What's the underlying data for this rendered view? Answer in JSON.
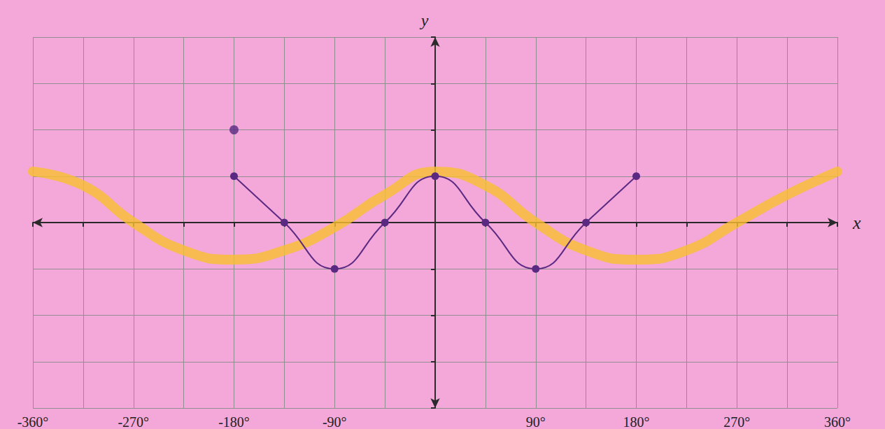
{
  "chart_data": {
    "type": "line",
    "xlabel": "x",
    "ylabel": "y",
    "xlim": [
      -360,
      360
    ],
    "ylim": [
      -4,
      4
    ],
    "xticks": [
      {
        "value": -360,
        "label": "-360°"
      },
      {
        "value": -315,
        "label": null
      },
      {
        "value": -270,
        "label": "-270°"
      },
      {
        "value": -225,
        "label": null
      },
      {
        "value": -180,
        "label": "-180°"
      },
      {
        "value": -135,
        "label": null
      },
      {
        "value": -90,
        "label": "-90°"
      },
      {
        "value": -45,
        "label": null
      },
      {
        "value": 0,
        "label": null
      },
      {
        "value": 45,
        "label": null
      },
      {
        "value": 90,
        "label": "90°"
      },
      {
        "value": 135,
        "label": null
      },
      {
        "value": 180,
        "label": "180°"
      },
      {
        "value": 225,
        "label": null
      },
      {
        "value": 270,
        "label": "270°"
      },
      {
        "value": 315,
        "label": null
      },
      {
        "value": 360,
        "label": "360°"
      }
    ],
    "yticks": [
      -4,
      -3,
      -2,
      -1,
      0,
      1,
      2,
      3,
      4
    ],
    "grid": true,
    "tick_labels": "x",
    "series": [
      {
        "type": "line",
        "color": "#f7c02e",
        "line_style": "solid",
        "x": [
          -360,
          -315,
          -270,
          -225,
          -180,
          -135,
          -90,
          -45,
          0,
          45,
          90,
          135,
          180,
          225,
          270,
          315,
          360
        ],
        "values": [
          1.1,
          0.8,
          0,
          -0.6,
          -0.8,
          -0.6,
          -0.1,
          0.6,
          1.1,
          0.8,
          0,
          -0.6,
          -0.8,
          -0.6,
          0,
          0.6,
          1.1
        ]
      },
      {
        "type": "line",
        "color": "#5a2a82",
        "marker": "circle",
        "line_style": "solid",
        "x": [
          -180,
          -135,
          -90,
          -45,
          0,
          45,
          90,
          135,
          180
        ],
        "values": [
          1,
          0,
          -1,
          0,
          1,
          0,
          -1,
          0,
          1
        ]
      },
      {
        "type": "scatter",
        "color": "#5a2a82",
        "marker": "circle",
        "x": [
          -180
        ],
        "values": [
          2
        ]
      }
    ]
  }
}
